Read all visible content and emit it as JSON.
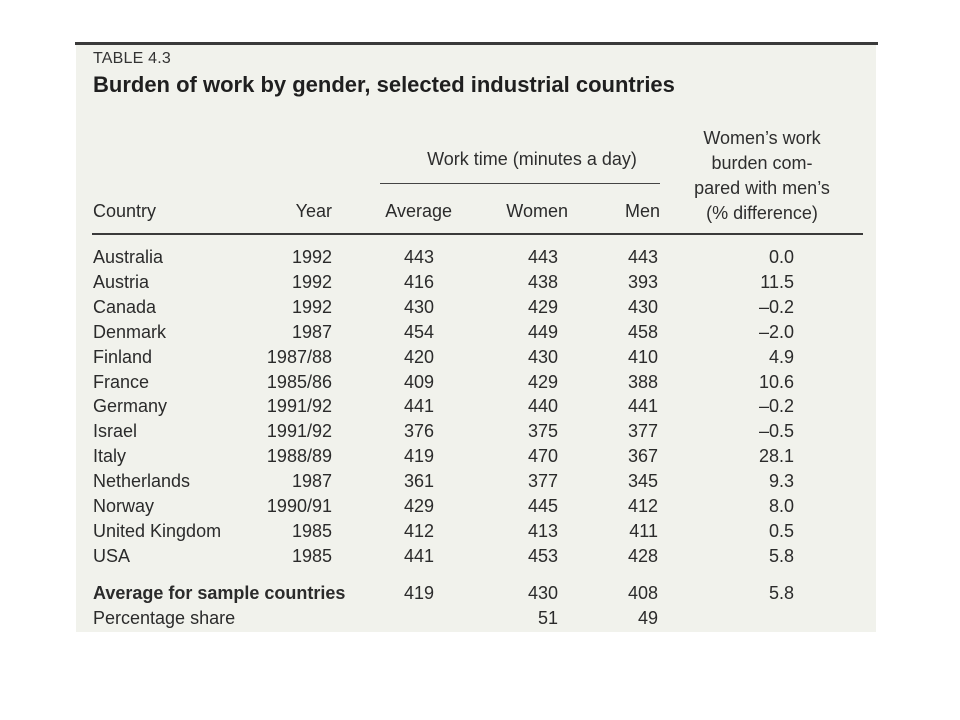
{
  "table": {
    "caption": "TABLE 4.3",
    "title": "Burden of work by gender, selected industrial countries",
    "group_header": "Work time (minutes a day)",
    "columns": {
      "country": "Country",
      "year": "Year",
      "average": "Average",
      "women": "Women",
      "men": "Men",
      "burden": [
        "Women’s work",
        "burden com-",
        "pared with men’s",
        "(% difference)"
      ]
    },
    "rows": [
      {
        "country": "Australia",
        "year": "1992",
        "average": "443",
        "women": "443",
        "men": "443",
        "diff": "0.0"
      },
      {
        "country": "Austria",
        "year": "1992",
        "average": "416",
        "women": "438",
        "men": "393",
        "diff": "11.5"
      },
      {
        "country": "Canada",
        "year": "1992",
        "average": "430",
        "women": "429",
        "men": "430",
        "diff": "–0.2"
      },
      {
        "country": "Denmark",
        "year": "1987",
        "average": "454",
        "women": "449",
        "men": "458",
        "diff": "–2.0"
      },
      {
        "country": "Finland",
        "year": "1987/88",
        "average": "420",
        "women": "430",
        "men": "410",
        "diff": "4.9"
      },
      {
        "country": "France",
        "year": "1985/86",
        "average": "409",
        "women": "429",
        "men": "388",
        "diff": "10.6"
      },
      {
        "country": "Germany",
        "year": "1991/92",
        "average": "441",
        "women": "440",
        "men": "441",
        "diff": "–0.2"
      },
      {
        "country": "Israel",
        "year": "1991/92",
        "average": "376",
        "women": "375",
        "men": "377",
        "diff": "–0.5"
      },
      {
        "country": "Italy",
        "year": "1988/89",
        "average": "419",
        "women": "470",
        "men": "367",
        "diff": "28.1"
      },
      {
        "country": "Netherlands",
        "year": "1987",
        "average": "361",
        "women": "377",
        "men": "345",
        "diff": "9.3"
      },
      {
        "country": "Norway",
        "year": "1990/91",
        "average": "429",
        "women": "445",
        "men": "412",
        "diff": "8.0"
      },
      {
        "country": "United Kingdom",
        "year": "1985",
        "average": "412",
        "women": "413",
        "men": "411",
        "diff": "0.5"
      },
      {
        "country": "USA",
        "year": "1985",
        "average": "441",
        "women": "453",
        "men": "428",
        "diff": "5.8"
      }
    ],
    "summary": {
      "label": "Average for sample countries",
      "average": "419",
      "women": "430",
      "men": "408",
      "diff": "5.8"
    },
    "share": {
      "label": "Percentage share",
      "women": "51",
      "men": "49"
    }
  }
}
